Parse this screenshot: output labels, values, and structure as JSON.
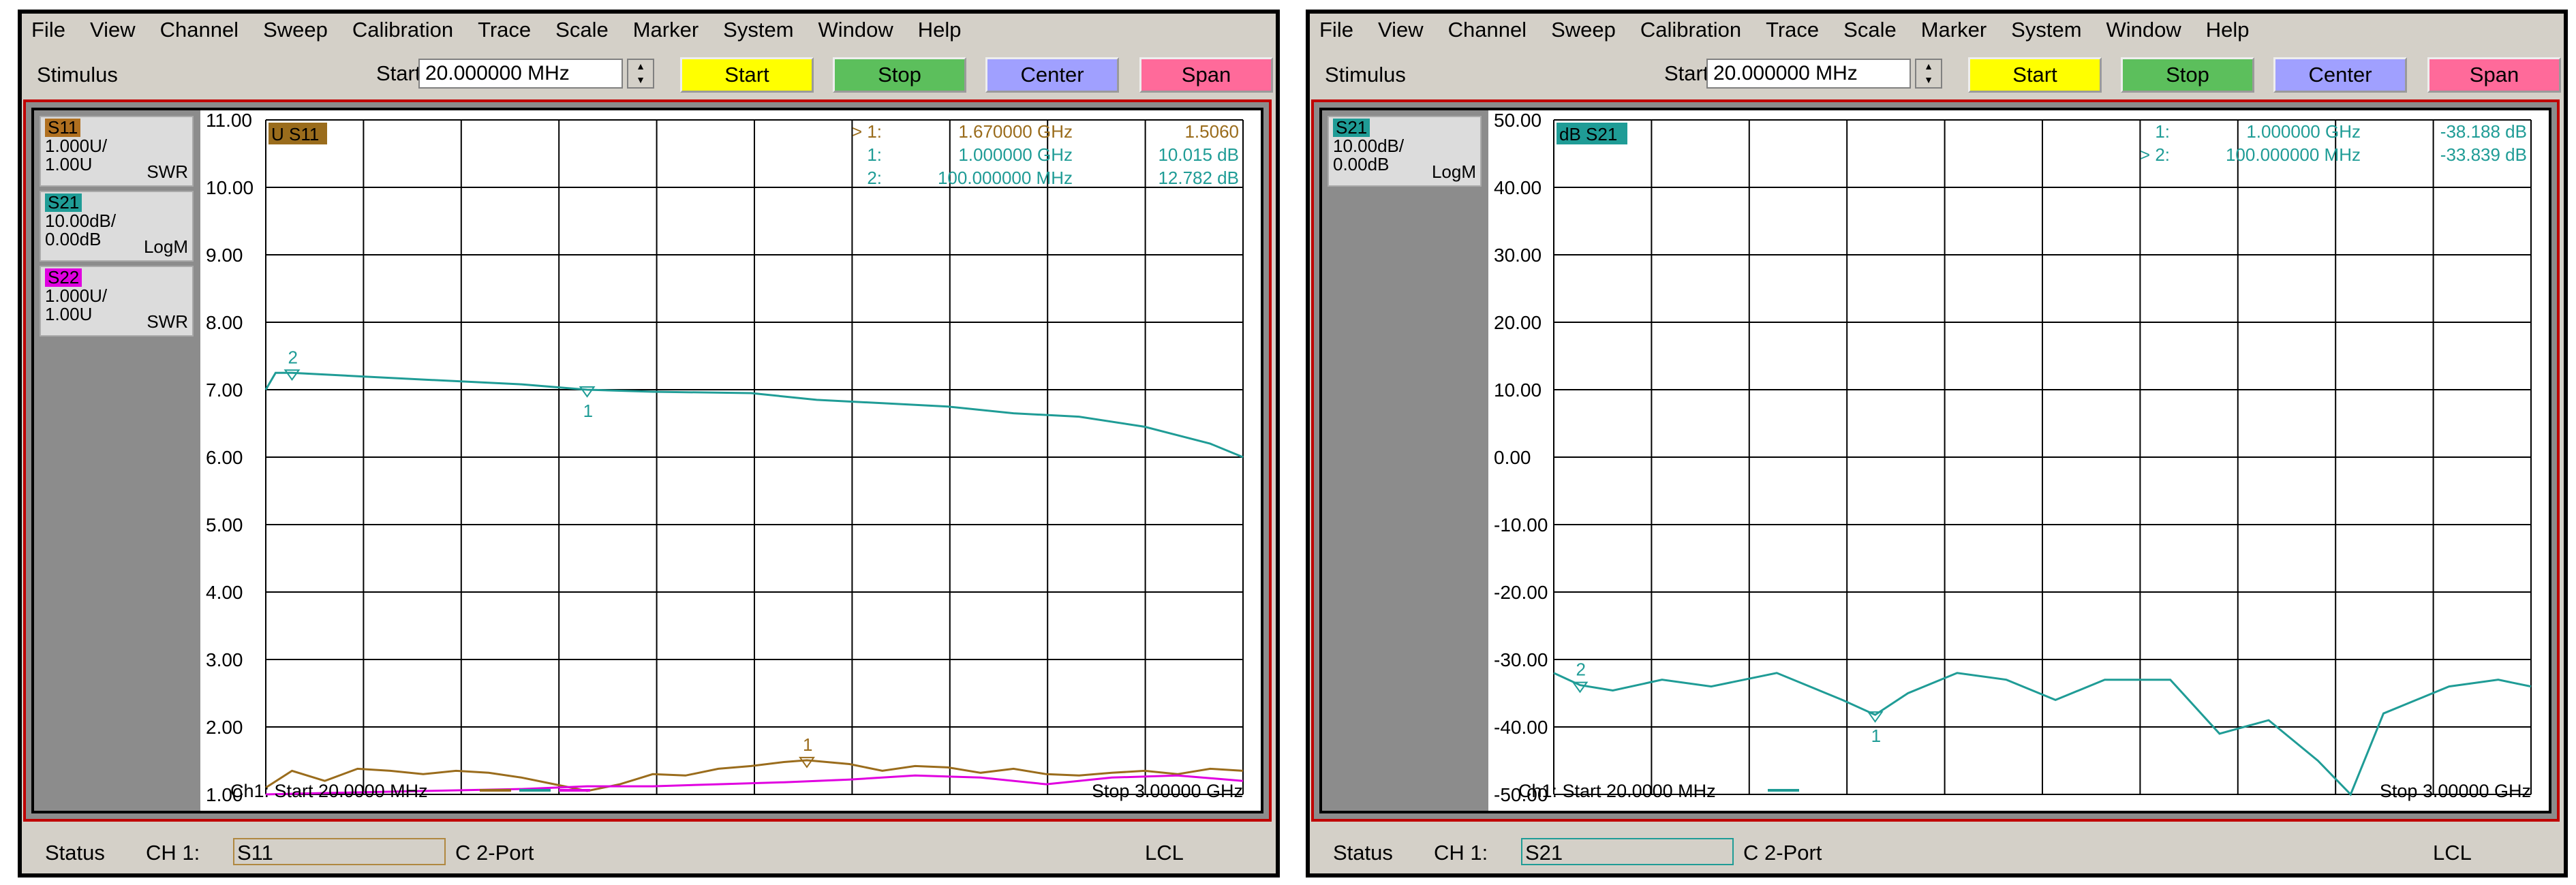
{
  "menu": [
    "File",
    "View",
    "Channel",
    "Sweep",
    "Calibration",
    "Trace",
    "Scale",
    "Marker",
    "System",
    "Window",
    "Help"
  ],
  "stimulus": {
    "label": "Stimulus",
    "start_label": "Start",
    "start_value": "20.000000 MHz",
    "buttons": [
      {
        "label": "Start",
        "color": "#ffff00"
      },
      {
        "label": "Stop",
        "color": "#5cbf5c"
      },
      {
        "label": "Center",
        "color": "#a0a0ff"
      },
      {
        "label": "Span",
        "color": "#ff6a9a"
      }
    ]
  },
  "colors": {
    "s11": "#9a6c1c",
    "s21": "#1f9c96",
    "s22": "#e000e0"
  },
  "left": {
    "traces": [
      {
        "name": "S11",
        "scale": "1.000U/",
        "ref": "1.00U",
        "fmt": "SWR",
        "color": "#b07020"
      },
      {
        "name": "S21",
        "scale": "10.00dB/",
        "ref": "0.00dB",
        "fmt": "LogM",
        "color": "#1f9c96"
      },
      {
        "name": "S22",
        "scale": "1.000U/",
        "ref": "1.00U",
        "fmt": "SWR",
        "color": "#e000e0"
      }
    ],
    "active_tag": "U S11",
    "yticks": [
      "11.00",
      "10.00",
      "9.00",
      "8.00",
      "7.00",
      "6.00",
      "5.00",
      "4.00",
      "3.00",
      "2.00",
      "1.00"
    ],
    "markers": [
      {
        "sel": "> 1:",
        "freq": "1.670000 GHz",
        "val": "1.5060",
        "color": "#9a6c1c"
      },
      {
        "sel": "1:",
        "freq": "1.000000 GHz",
        "val": "10.015 dB",
        "color": "#1f9c96"
      },
      {
        "sel": "2:",
        "freq": "100.000000 MHz",
        "val": "12.782 dB",
        "color": "#1f9c96"
      }
    ],
    "ch_start": "Ch1: Start  20.0000 MHz",
    "ch_stop": "Stop  3.00000 GHz",
    "status": {
      "label": "Status",
      "ch": "CH 1:",
      "field": "S11",
      "mode": "C  2-Port",
      "lcl": "LCL"
    },
    "chart_data": {
      "type": "line",
      "x_range_ghz": [
        0.02,
        3.0
      ],
      "series": [
        {
          "name": "S21",
          "x": [
            0.02,
            0.05,
            0.1,
            0.3,
            0.5,
            0.8,
            1.0,
            1.2,
            1.5,
            1.7,
            1.9,
            2.1,
            2.3,
            2.5,
            2.7,
            2.9,
            3.0
          ],
          "y": [
            7.0,
            7.25,
            7.25,
            7.2,
            7.15,
            7.08,
            7.0,
            6.97,
            6.95,
            6.85,
            6.8,
            6.75,
            6.65,
            6.6,
            6.45,
            6.2,
            6.0
          ]
        },
        {
          "name": "S11",
          "x": [
            0.02,
            0.1,
            0.2,
            0.3,
            0.4,
            0.5,
            0.6,
            0.7,
            0.8,
            0.9,
            1.0,
            1.1,
            1.2,
            1.3,
            1.4,
            1.5,
            1.6,
            1.67,
            1.8,
            1.9,
            2.0,
            2.1,
            2.2,
            2.3,
            2.4,
            2.5,
            2.6,
            2.7,
            2.8,
            2.9,
            3.0
          ],
          "y": [
            1.1,
            1.35,
            1.2,
            1.38,
            1.35,
            1.3,
            1.35,
            1.32,
            1.25,
            1.15,
            1.05,
            1.15,
            1.3,
            1.28,
            1.38,
            1.42,
            1.48,
            1.506,
            1.45,
            1.35,
            1.42,
            1.4,
            1.32,
            1.38,
            1.3,
            1.28,
            1.32,
            1.35,
            1.3,
            1.38,
            1.35
          ]
        },
        {
          "name": "S22",
          "x": [
            0.02,
            0.2,
            0.5,
            0.8,
            1.0,
            1.2,
            1.4,
            1.6,
            1.8,
            2.0,
            2.2,
            2.4,
            2.6,
            2.8,
            3.0
          ],
          "y": [
            1.0,
            1.02,
            1.05,
            1.08,
            1.12,
            1.12,
            1.15,
            1.18,
            1.22,
            1.28,
            1.25,
            1.15,
            1.25,
            1.28,
            1.2
          ]
        }
      ]
    }
  },
  "right": {
    "traces": [
      {
        "name": "S21",
        "scale": "10.00dB/",
        "ref": "0.00dB",
        "fmt": "LogM",
        "color": "#1f9c96"
      }
    ],
    "active_tag": "dB S21",
    "yticks": [
      "50.00",
      "40.00",
      "30.00",
      "20.00",
      "10.00",
      "0.00",
      "-10.00",
      "-20.00",
      "-30.00",
      "-40.00",
      "-50.00"
    ],
    "markers": [
      {
        "sel": "1:",
        "freq": "1.000000 GHz",
        "val": "-38.188 dB",
        "color": "#1f9c96"
      },
      {
        "sel": "> 2:",
        "freq": "100.000000 MHz",
        "val": "-33.839 dB",
        "color": "#1f9c96"
      }
    ],
    "ch_start": "Ch1: Start  20.0000 MHz",
    "ch_stop": "Stop  3.00000 GHz",
    "status": {
      "label": "Status",
      "ch": "CH 1:",
      "field": "S21",
      "mode": "C  2-Port",
      "lcl": "LCL"
    },
    "chart_data": {
      "type": "line",
      "x_range_ghz": [
        0.02,
        3.0
      ],
      "series": [
        {
          "name": "S21",
          "x": [
            0.02,
            0.1,
            0.2,
            0.35,
            0.5,
            0.7,
            0.9,
            1.0,
            1.1,
            1.25,
            1.4,
            1.55,
            1.7,
            1.9,
            2.05,
            2.2,
            2.35,
            2.45,
            2.55,
            2.65,
            2.75,
            2.9,
            3.0
          ],
          "y": [
            -32.0,
            -33.8,
            -34.6,
            -33.0,
            -34.0,
            -32.0,
            -36.0,
            -38.2,
            -35.0,
            -32.0,
            -33.0,
            -36.0,
            -33.0,
            -33.0,
            -41.0,
            -39.0,
            -45.0,
            -50.0,
            -38.0,
            -36.0,
            -34.0,
            -33.0,
            -34.0
          ]
        }
      ]
    }
  }
}
